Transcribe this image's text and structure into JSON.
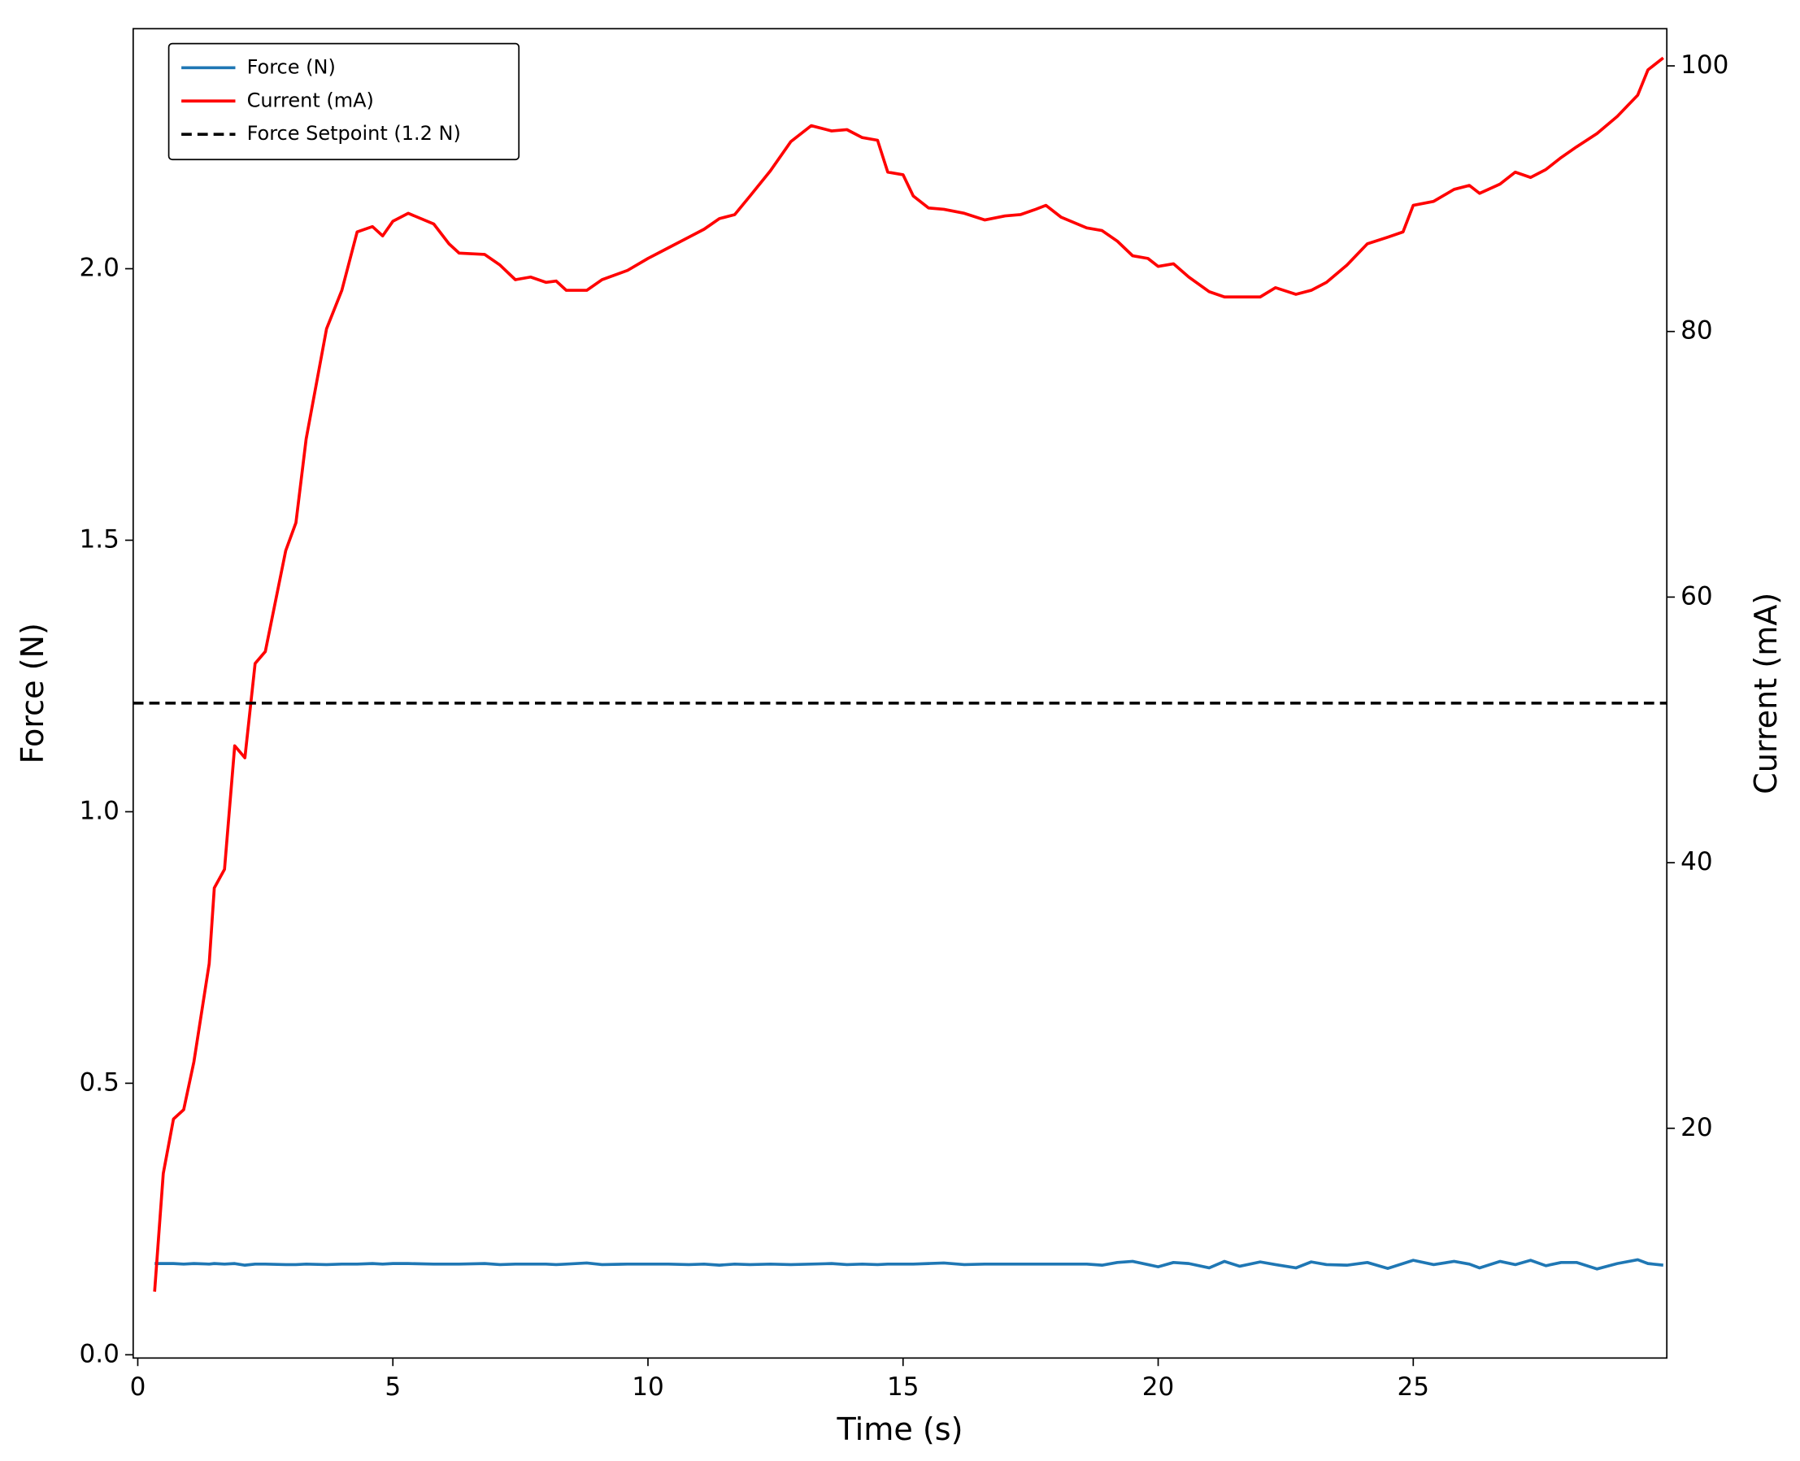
{
  "chart_data": {
    "type": "line",
    "xlabel": "Time (s)",
    "ylabel": "Force (N)",
    "y2label": "Current (mA)",
    "x": [
      0.33,
      0.5,
      0.7,
      0.9,
      1.1,
      1.4,
      1.5,
      1.7,
      1.9,
      2.1,
      2.3,
      2.5,
      2.9,
      3.1,
      3.3,
      3.7,
      4.0,
      4.3,
      4.6,
      4.8,
      5.0,
      5.3,
      5.8,
      6.1,
      6.3,
      6.8,
      7.1,
      7.4,
      7.7,
      8.0,
      8.2,
      8.4,
      8.8,
      9.1,
      9.6,
      10.0,
      10.4,
      10.8,
      11.1,
      11.4,
      11.7,
      12.0,
      12.4,
      12.8,
      13.2,
      13.6,
      13.9,
      14.2,
      14.5,
      14.7,
      15.0,
      15.2,
      15.5,
      15.8,
      16.2,
      16.6,
      17.0,
      17.3,
      17.6,
      17.8,
      18.1,
      18.6,
      18.9,
      19.2,
      19.5,
      19.8,
      20.0,
      20.3,
      20.6,
      21.0,
      21.3,
      21.6,
      22.0,
      22.3,
      22.7,
      23.0,
      23.3,
      23.7,
      24.1,
      24.5,
      24.8,
      25.0,
      25.4,
      25.8,
      26.1,
      26.3,
      26.7,
      27.0,
      27.3,
      27.6,
      27.9,
      28.2,
      28.6,
      29.0,
      29.4,
      29.6,
      29.9
    ],
    "series": [
      {
        "name": "Force (N)",
        "color": "#1f77b4",
        "axis": "y",
        "values": [
          0.168,
          0.168,
          0.168,
          0.167,
          0.168,
          0.167,
          0.168,
          0.167,
          0.168,
          0.165,
          0.167,
          0.167,
          0.166,
          0.166,
          0.167,
          0.166,
          0.167,
          0.167,
          0.168,
          0.167,
          0.168,
          0.168,
          0.167,
          0.167,
          0.167,
          0.168,
          0.166,
          0.167,
          0.167,
          0.167,
          0.166,
          0.167,
          0.169,
          0.166,
          0.167,
          0.167,
          0.167,
          0.166,
          0.167,
          0.165,
          0.167,
          0.166,
          0.167,
          0.166,
          0.167,
          0.168,
          0.166,
          0.167,
          0.166,
          0.167,
          0.167,
          0.167,
          0.168,
          0.169,
          0.166,
          0.167,
          0.167,
          0.167,
          0.167,
          0.167,
          0.167,
          0.167,
          0.165,
          0.17,
          0.172,
          0.166,
          0.162,
          0.17,
          0.168,
          0.16,
          0.172,
          0.163,
          0.171,
          0.166,
          0.16,
          0.171,
          0.166,
          0.165,
          0.17,
          0.159,
          0.168,
          0.174,
          0.166,
          0.172,
          0.167,
          0.16,
          0.172,
          0.166,
          0.174,
          0.164,
          0.17,
          0.17,
          0.158,
          0.168,
          0.175,
          0.168,
          0.165
        ]
      },
      {
        "name": "Current (mA)",
        "color": "#ff0000",
        "axis": "y2",
        "values": [
          7.7,
          16.6,
          20.7,
          21.4,
          25.0,
          32.4,
          38.1,
          39.5,
          48.8,
          47.9,
          55.0,
          55.9,
          63.5,
          65.6,
          71.9,
          80.2,
          83.1,
          87.5,
          87.9,
          87.2,
          88.3,
          88.9,
          88.1,
          86.6,
          85.9,
          85.8,
          85.0,
          83.9,
          84.1,
          83.7,
          83.8,
          83.1,
          83.1,
          83.9,
          84.6,
          85.5,
          86.3,
          87.1,
          87.7,
          88.5,
          88.8,
          90.2,
          92.1,
          94.3,
          95.5,
          95.1,
          95.2,
          94.6,
          94.4,
          92.0,
          91.8,
          90.2,
          89.3,
          89.2,
          88.9,
          88.4,
          88.7,
          88.8,
          89.2,
          89.5,
          88.6,
          87.8,
          87.6,
          86.8,
          85.7,
          85.5,
          84.9,
          85.1,
          84.1,
          83.0,
          82.6,
          82.6,
          82.6,
          83.3,
          82.8,
          83.1,
          83.7,
          85.0,
          86.6,
          87.1,
          87.5,
          89.5,
          89.8,
          90.7,
          91.0,
          90.4,
          91.1,
          92.0,
          91.6,
          92.2,
          93.1,
          93.9,
          94.9,
          96.2,
          97.8,
          99.7,
          100.6
        ]
      }
    ],
    "hline": {
      "name": "Force Setpoint (1.2 N)",
      "value": 1.2,
      "color": "#000000",
      "dash": true
    },
    "xlim": [
      -0.09,
      29.97
    ],
    "ylim": [
      -0.006,
      2.442
    ],
    "y2lim": [
      2.7,
      102.8
    ],
    "xticks": [
      0,
      5,
      10,
      15,
      20,
      25
    ],
    "yticks": [
      {
        "value": 0,
        "label": "0.0"
      },
      {
        "value": 0.5,
        "label": "0.5"
      },
      {
        "value": 1,
        "label": "1.0"
      },
      {
        "value": 1.5,
        "label": "1.5"
      },
      {
        "value": 2,
        "label": "2.0"
      }
    ],
    "y2ticks": [
      20,
      40,
      60,
      80,
      100
    ],
    "legend": "upper left",
    "grid": false
  }
}
